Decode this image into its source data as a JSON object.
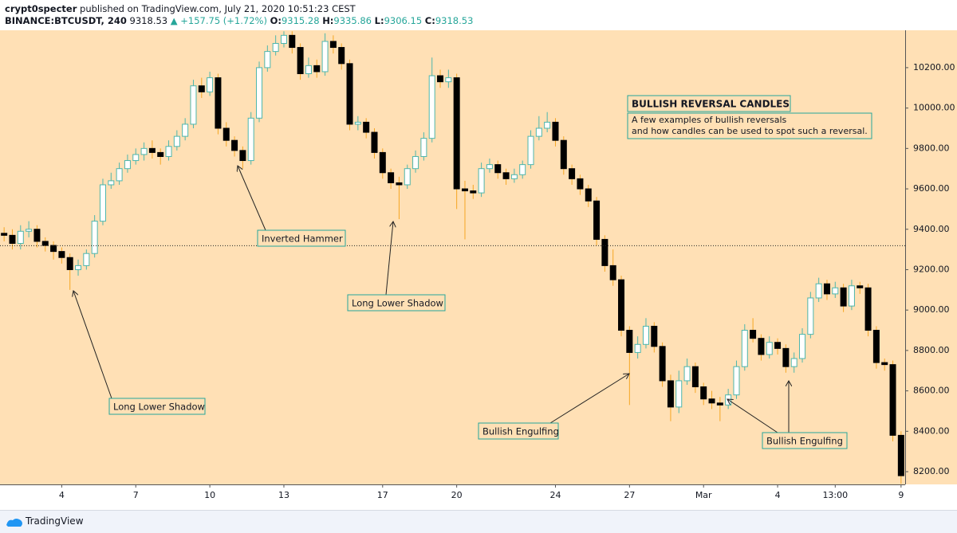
{
  "header": {
    "publisher": "crypt0specter",
    "published": "published on TradingView.com, July 21, 2020 10:51:23 CEST",
    "symbol": "BINANCE:BTCUSDT, 240",
    "price": "9318.53",
    "change": "▲ +157.75 (+1.72%)",
    "ohlc": [
      {
        "label": "O:",
        "value": "9315.28"
      },
      {
        "label": "H:",
        "value": "9335.86"
      },
      {
        "label": "L:",
        "value": "9306.15"
      },
      {
        "label": "C:",
        "value": "9318.53"
      }
    ]
  },
  "footer": {
    "brand": "TradingView"
  },
  "chart_data": {
    "type": "candlestick",
    "categories": [
      null,
      null,
      null,
      null,
      null,
      null,
      null,
      "4",
      null,
      null,
      null,
      null,
      null,
      null,
      null,
      null,
      "7",
      null,
      null,
      null,
      null,
      null,
      null,
      null,
      null,
      "10",
      null,
      null,
      null,
      null,
      null,
      null,
      null,
      null,
      "13",
      null,
      null,
      null,
      null,
      null,
      null,
      null,
      null,
      null,
      null,
      null,
      "17",
      null,
      null,
      null,
      null,
      null,
      null,
      null,
      null,
      "20",
      null,
      null,
      null,
      null,
      null,
      null,
      null,
      null,
      null,
      null,
      null,
      "24",
      null,
      null,
      null,
      null,
      null,
      null,
      null,
      null,
      "27",
      null,
      null,
      null,
      null,
      null,
      null,
      null,
      null,
      "Mar",
      null,
      null,
      null,
      null,
      null,
      null,
      null,
      null,
      "4",
      null,
      null,
      null,
      null,
      null,
      null,
      "13:00",
      null,
      null,
      null,
      null,
      null,
      null,
      null,
      "9"
    ],
    "open": [
      9380,
      9370,
      9330,
      9390,
      9400,
      9340,
      9320,
      9290,
      9260,
      9200,
      9220,
      9280,
      9440,
      9620,
      9640,
      9700,
      9740,
      9770,
      9800,
      9780,
      9760,
      9810,
      9860,
      9920,
      10110,
      10080,
      10150,
      9900,
      9840,
      9790,
      9740,
      9950,
      10200,
      10280,
      10320,
      10360,
      10300,
      10170,
      10210,
      10180,
      10330,
      10300,
      10220,
      9920,
      9930,
      9880,
      9780,
      9680,
      9630,
      9620,
      9700,
      9760,
      9850,
      10160,
      10130,
      10150,
      9600,
      9590,
      9580,
      9700,
      9720,
      9680,
      9650,
      9670,
      9720,
      9860,
      9900,
      9930,
      9840,
      9700,
      9650,
      9600,
      9540,
      9350,
      9220,
      9150,
      8900,
      8790,
      8830,
      8920,
      8820,
      8650,
      8520,
      8650,
      8720,
      8620,
      8560,
      8540,
      8530,
      8580,
      8720,
      8900,
      8860,
      8780,
      8840,
      8810,
      8720,
      8760,
      8880,
      9060,
      9130,
      9080,
      9110,
      9020,
      9120,
      9110,
      8900,
      8740,
      8730,
      8380
    ],
    "high": [
      9410,
      9400,
      9420,
      9440,
      9420,
      9360,
      9340,
      9310,
      9280,
      9250,
      9300,
      9470,
      9650,
      9680,
      9730,
      9770,
      9800,
      9830,
      9840,
      9800,
      9840,
      9890,
      9950,
      10140,
      10150,
      10180,
      10170,
      9930,
      9860,
      9810,
      9980,
      10230,
      10310,
      10360,
      10380,
      10380,
      10320,
      10250,
      10240,
      10370,
      10360,
      10320,
      10240,
      9960,
      9950,
      9900,
      9800,
      9700,
      9660,
      9720,
      9790,
      9880,
      10250,
      10190,
      10190,
      10170,
      9640,
      9620,
      9730,
      9750,
      9740,
      9700,
      9700,
      9740,
      9890,
      9960,
      9980,
      9950,
      9860,
      9720,
      9670,
      9620,
      9560,
      9370,
      9300,
      9170,
      8920,
      8870,
      8960,
      8940,
      8840,
      8680,
      8700,
      8760,
      8740,
      8640,
      8600,
      8570,
      8610,
      8750,
      8930,
      8960,
      8880,
      8870,
      8860,
      8830,
      8790,
      8910,
      9090,
      9160,
      9150,
      9140,
      9130,
      9150,
      9140,
      9130,
      8920,
      8760,
      8750,
      8400
    ],
    "low": [
      9340,
      9300,
      9300,
      9360,
      9310,
      9290,
      9250,
      9230,
      9100,
      9170,
      9200,
      9260,
      9420,
      9600,
      9620,
      9680,
      9720,
      9740,
      9750,
      9720,
      9740,
      9790,
      9840,
      9900,
      10050,
      10060,
      9870,
      9810,
      9760,
      9700,
      9720,
      9930,
      10180,
      10260,
      10300,
      10270,
      10140,
      10150,
      10150,
      10160,
      10270,
      10190,
      9890,
      9890,
      9850,
      9750,
      9650,
      9600,
      9450,
      9600,
      9680,
      9740,
      9830,
      10100,
      10100,
      9500,
      9350,
      9550,
      9560,
      9680,
      9650,
      9620,
      9630,
      9650,
      9700,
      9840,
      9880,
      9810,
      9670,
      9620,
      9570,
      9510,
      9320,
      9190,
      9120,
      8870,
      8530,
      8760,
      8810,
      8790,
      8620,
      8450,
      8490,
      8630,
      8590,
      8530,
      8510,
      8450,
      8510,
      8560,
      8700,
      8840,
      8750,
      8760,
      8780,
      8690,
      8690,
      8740,
      8860,
      9040,
      9050,
      9060,
      8990,
      9000,
      9080,
      8870,
      8710,
      8700,
      8350,
      8140
    ],
    "close": [
      9370,
      9330,
      9390,
      9400,
      9340,
      9320,
      9290,
      9260,
      9200,
      9220,
      9280,
      9440,
      9620,
      9640,
      9700,
      9740,
      9770,
      9800,
      9780,
      9760,
      9810,
      9860,
      9920,
      10110,
      10080,
      10150,
      9900,
      9840,
      9790,
      9740,
      9950,
      10200,
      10280,
      10320,
      10360,
      10300,
      10170,
      10210,
      10180,
      10330,
      10300,
      10220,
      9920,
      9930,
      9880,
      9780,
      9680,
      9630,
      9620,
      9700,
      9760,
      9850,
      10160,
      10130,
      10150,
      9600,
      9590,
      9580,
      9700,
      9720,
      9680,
      9650,
      9670,
      9720,
      9860,
      9900,
      9930,
      9840,
      9700,
      9650,
      9600,
      9540,
      9350,
      9220,
      9150,
      8900,
      8790,
      8830,
      8920,
      8820,
      8650,
      8520,
      8650,
      8720,
      8620,
      8560,
      8540,
      8530,
      8580,
      8720,
      8900,
      8860,
      8780,
      8840,
      8810,
      8720,
      8760,
      8880,
      9060,
      9130,
      9080,
      9110,
      9020,
      9120,
      9110,
      8900,
      8740,
      8730,
      8380,
      8180
    ],
    "up_color": "#ffffff",
    "up_border": "#4db6ac",
    "down_color": "#000000",
    "wick_color": "#f5a623",
    "background": "#ffe0b5",
    "ylim": [
      8137,
      10385
    ],
    "yticks": [
      {
        "value": 8200,
        "label": "8200.00"
      },
      {
        "value": 8400,
        "label": "8400.00"
      },
      {
        "value": 8600,
        "label": "8600.00"
      },
      {
        "value": 8800,
        "label": "8800.00"
      },
      {
        "value": 9000,
        "label": "9000.00"
      },
      {
        "value": 9200,
        "label": "9200.00"
      },
      {
        "value": 9400,
        "label": "9400.00"
      },
      {
        "value": 9600,
        "label": "9600.00"
      },
      {
        "value": 9800,
        "label": "9800.00"
      },
      {
        "value": 10000,
        "label": "10000.00"
      },
      {
        "value": 10200,
        "label": "10200.00"
      }
    ],
    "price_line": 9318.53,
    "annotations": [
      {
        "text": "BULLISH REVERSAL CANDLES"
      },
      {
        "lines": [
          "A few examples of bullish reversals",
          "and how candles can be used to spot such a reversal."
        ]
      },
      {
        "text": "Inverted Hammer"
      },
      {
        "text": "Long Lower Shadow"
      },
      {
        "text": "Long Lower Shadow"
      },
      {
        "text": "Bullish Engulfing"
      },
      {
        "text": "Bullish Engulfing"
      }
    ]
  }
}
